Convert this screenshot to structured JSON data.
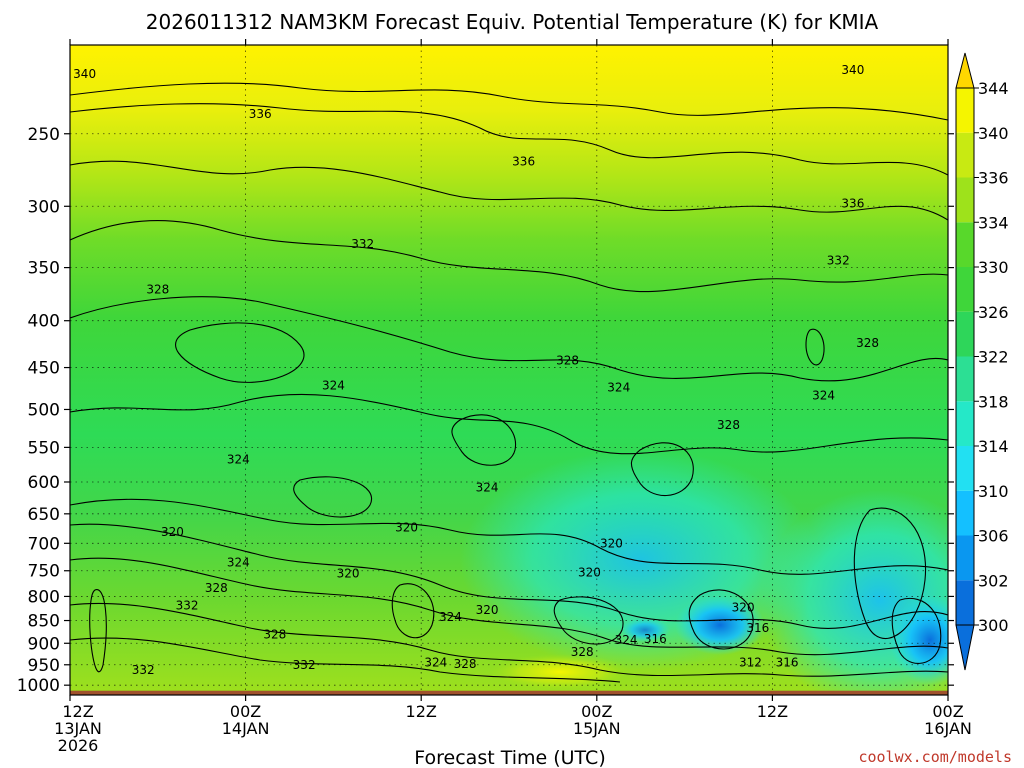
{
  "title": "2026011312 NAM3KM Forecast Equiv. Potential Temperature (K) for KMIA",
  "credit": "coolwx.com/models",
  "colors": {
    "low": "#0a6fdc",
    "mid": "#2ed65a",
    "high": "#ffee00",
    "ground": "#a0522d",
    "credit": "#c0392b"
  },
  "chart_data": {
    "type": "heatmap",
    "title": "2026011312 NAM3KM Forecast Equiv. Potential Temperature (K) for KMIA",
    "xlabel": "Forecast Time (UTC)",
    "ylabel": "",
    "x_ticks": [
      {
        "hour": 0,
        "line1": "12Z",
        "line2": "13JAN",
        "line3": "2026"
      },
      {
        "hour": 12,
        "line1": "00Z",
        "line2": "14JAN",
        "line3": ""
      },
      {
        "hour": 24,
        "line1": "12Z",
        "line2": "",
        "line3": ""
      },
      {
        "hour": 36,
        "line1": "00Z",
        "line2": "15JAN",
        "line3": ""
      },
      {
        "hour": 48,
        "line1": "12Z",
        "line2": "",
        "line3": ""
      },
      {
        "hour": 60,
        "line1": "00Z",
        "line2": "16JAN",
        "line3": ""
      }
    ],
    "x_range_hours": [
      0,
      60
    ],
    "y_axis": "pressure (hPa, log scale, inverted)",
    "y_range": [
      1025,
      200
    ],
    "y_ticks": [
      250,
      300,
      350,
      400,
      450,
      500,
      550,
      600,
      650,
      700,
      750,
      800,
      850,
      900,
      950,
      1000
    ],
    "grid": true,
    "colorbar": {
      "placement": "right",
      "ticks": [
        300,
        302,
        306,
        310,
        314,
        318,
        322,
        326,
        330,
        334,
        336,
        340,
        344
      ],
      "colors": [
        "#0a6fdc",
        "#0a97f0",
        "#14c0ff",
        "#22e0f2",
        "#25e8c8",
        "#2cdf94",
        "#2ed65a",
        "#3fd63a",
        "#58d82b",
        "#9ee21b",
        "#c8ea12",
        "#f5f500",
        "#ffd700"
      ]
    },
    "contour_interval_K": 4,
    "contour_labels": [
      {
        "value": "340",
        "hour": 1.0,
        "p": 215
      },
      {
        "value": "340",
        "hour": 53.5,
        "p": 213
      },
      {
        "value": "336",
        "hour": 13.0,
        "p": 238
      },
      {
        "value": "336",
        "hour": 31.0,
        "p": 268
      },
      {
        "value": "336",
        "hour": 53.5,
        "p": 298
      },
      {
        "value": "332",
        "hour": 20.0,
        "p": 330
      },
      {
        "value": "332",
        "hour": 52.5,
        "p": 344
      },
      {
        "value": "328",
        "hour": 6.0,
        "p": 370
      },
      {
        "value": "328",
        "hour": 34.0,
        "p": 442
      },
      {
        "value": "328",
        "hour": 54.5,
        "p": 423
      },
      {
        "value": "328",
        "hour": 45.0,
        "p": 520
      },
      {
        "value": "324",
        "hour": 18.0,
        "p": 471
      },
      {
        "value": "324",
        "hour": 37.5,
        "p": 473
      },
      {
        "value": "324",
        "hour": 51.5,
        "p": 483
      },
      {
        "value": "324",
        "hour": 11.5,
        "p": 567
      },
      {
        "value": "324",
        "hour": 28.5,
        "p": 608
      },
      {
        "value": "324",
        "hour": 11.5,
        "p": 735
      },
      {
        "value": "324",
        "hour": 26.0,
        "p": 843
      },
      {
        "value": "324",
        "hour": 38.0,
        "p": 893
      },
      {
        "value": "324",
        "hour": 25.0,
        "p": 944
      },
      {
        "value": "320",
        "hour": 7.0,
        "p": 680
      },
      {
        "value": "320",
        "hour": 23.0,
        "p": 673
      },
      {
        "value": "320",
        "hour": 37.0,
        "p": 700
      },
      {
        "value": "320",
        "hour": 35.5,
        "p": 753
      },
      {
        "value": "320",
        "hour": 19.0,
        "p": 755
      },
      {
        "value": "320",
        "hour": 28.5,
        "p": 828
      },
      {
        "value": "320",
        "hour": 46.0,
        "p": 823
      },
      {
        "value": "316",
        "hour": 40.0,
        "p": 890
      },
      {
        "value": "316",
        "hour": 47.0,
        "p": 866
      },
      {
        "value": "316",
        "hour": 49.0,
        "p": 944
      },
      {
        "value": "312",
        "hour": 46.5,
        "p": 944
      },
      {
        "value": "328",
        "hour": 10.0,
        "p": 783
      },
      {
        "value": "328",
        "hour": 14.0,
        "p": 880
      },
      {
        "value": "328",
        "hour": 27.0,
        "p": 948
      },
      {
        "value": "328",
        "hour": 35.0,
        "p": 920
      },
      {
        "value": "332",
        "hour": 8.0,
        "p": 818
      },
      {
        "value": "332",
        "hour": 16.0,
        "p": 950
      },
      {
        "value": "332",
        "hour": 5.0,
        "p": 962
      }
    ],
    "ground_level_hPa": 1014
  }
}
